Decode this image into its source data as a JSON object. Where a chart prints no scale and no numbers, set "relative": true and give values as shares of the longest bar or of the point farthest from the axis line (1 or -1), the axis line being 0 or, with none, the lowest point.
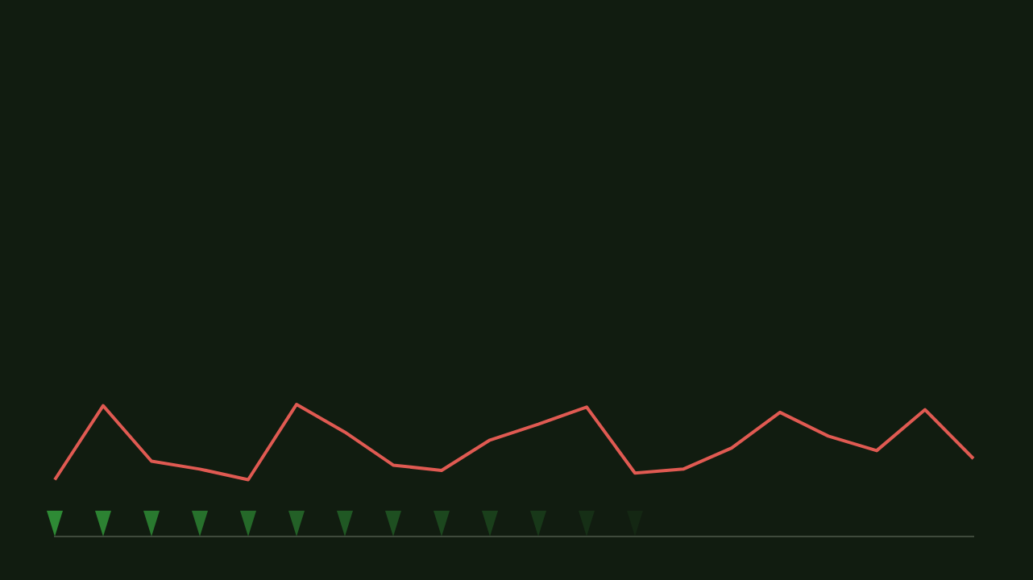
{
  "chart_data": {
    "type": "line",
    "relative": true,
    "categories": [
      null,
      null,
      null,
      null,
      null,
      null,
      null,
      null,
      null,
      null,
      null,
      null,
      null,
      null,
      null,
      null,
      null,
      null,
      null,
      null
    ],
    "series": [
      {
        "color": "#e05a52",
        "values": [
          0.43,
          0.99,
          0.57,
          0.51,
          0.43,
          1,
          0.79,
          0.54,
          0.5,
          0.73,
          0.85,
          0.98,
          0.48,
          0.51,
          0.67,
          0.94,
          0.76,
          0.65,
          0.96,
          0.59
        ]
      }
    ],
    "legend": false,
    "marker": "none",
    "line_style": "solid"
  }
}
